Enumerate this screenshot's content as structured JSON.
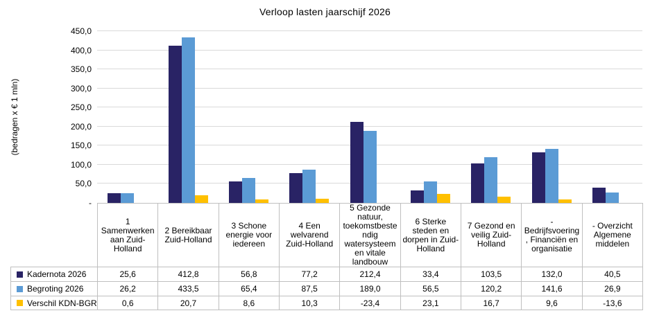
{
  "chart_data": {
    "type": "bar",
    "title": "Verloop lasten jaarschijf 2026",
    "ylabel": "(bedragen x € 1 mln)",
    "ylim": [
      0,
      450
    ],
    "grid": true,
    "legend_position": "table-left",
    "yticks": [
      0,
      50,
      100,
      150,
      200,
      250,
      300,
      350,
      400,
      450
    ],
    "ytick_labels": [
      "-",
      "50,0",
      "100,0",
      "150,0",
      "200,0",
      "250,0",
      "300,0",
      "350,0",
      "400,0",
      "450,0"
    ],
    "categories": [
      "1 Samenwerken aan Zuid-Holland",
      "2 Bereikbaar Zuid-Holland",
      "3 Schone energie voor iedereen",
      "4 Een welvarend Zuid-Holland",
      "5 Gezonde natuur, toekomstbestendig watersysteem en vitale landbouw",
      "6 Sterke steden en dorpen in Zuid-Holland",
      "7 Gezond en veilig Zuid-Holland",
      "- Bedrijfsvoering, Financiën en organisatie",
      "- Overzicht Algemene middelen"
    ],
    "series": [
      {
        "name": "Kadernota 2026",
        "color": "#292365",
        "values": [
          25.6,
          412.8,
          56.8,
          77.2,
          212.4,
          33.4,
          103.5,
          132.0,
          40.5
        ],
        "display": [
          "25,6",
          "412,8",
          "56,8",
          "77,2",
          "212,4",
          "33,4",
          "103,5",
          "132,0",
          "40,5"
        ]
      },
      {
        "name": "Begroting 2026",
        "color": "#5B9BD5",
        "values": [
          26.2,
          433.5,
          65.4,
          87.5,
          189.0,
          56.5,
          120.2,
          141.6,
          26.9
        ],
        "display": [
          "26,2",
          "433,5",
          "65,4",
          "87,5",
          "189,0",
          "56,5",
          "120,2",
          "141,6",
          "26,9"
        ]
      },
      {
        "name": "Verschil KDN-BGR",
        "color": "#FFC000",
        "values": [
          0.6,
          20.7,
          8.6,
          10.3,
          -23.4,
          23.1,
          16.7,
          9.6,
          -13.6
        ],
        "display": [
          "0,6",
          "20,7",
          "8,6",
          "10,3",
          "-23,4",
          "23,1",
          "16,7",
          "9,6",
          "-13,6"
        ]
      }
    ]
  },
  "colors": {
    "gridline": "#D9D9D9",
    "table_border": "#BFBFBF",
    "background": "#FFFFFF",
    "text": "#000000"
  }
}
